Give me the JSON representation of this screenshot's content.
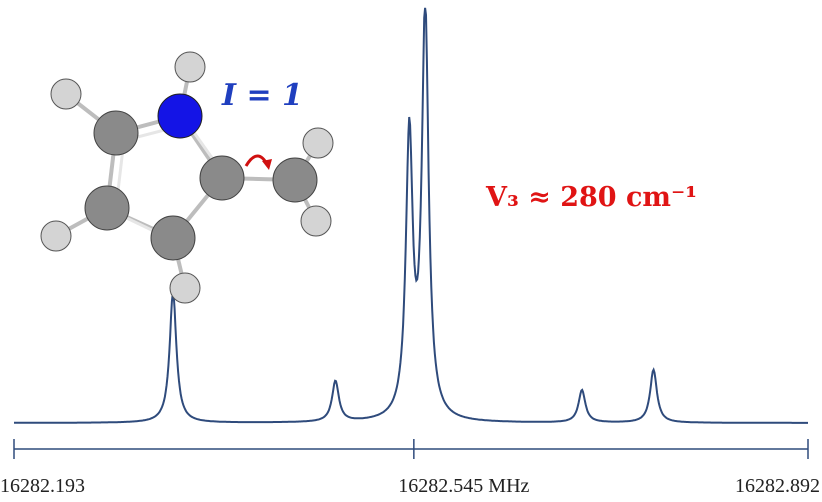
{
  "colors": {
    "spectrum": "#2f4b7c",
    "axis": "#2f4b7c",
    "spin_label": "#1f3fbf",
    "barrier_label": "#e01414",
    "carbon": "#8a8a8a",
    "hydrogen": "#d4d4d4",
    "nitrogen": "#1414e6",
    "rotor_arrow": "#d01010"
  },
  "annotations": {
    "spin_label": "I = 1",
    "barrier_label": "V₃ ≈ 280 cm⁻¹"
  },
  "molecule": {
    "name_icon": "methyl-pyrrole-ball-and-stick-icon",
    "atoms": [
      "C",
      "C",
      "C",
      "C",
      "N",
      "C",
      "H",
      "H",
      "H",
      "H",
      "H",
      "H",
      "H"
    ]
  },
  "chart_data": {
    "type": "line",
    "title": "",
    "xlabel": "",
    "ylabel": "",
    "xlim": [
      16282.193,
      16282.892
    ],
    "ylim": [
      0,
      1
    ],
    "grid": false,
    "tick_labels": [
      "16282.193",
      "16282.545 MHz",
      "16282.892"
    ],
    "tick_values": [
      16282.193,
      16282.545,
      16282.892
    ],
    "peaks": [
      {
        "x": 16282.333,
        "height": 0.32
      },
      {
        "x": 16282.476,
        "height": 0.1
      },
      {
        "x": 16282.541,
        "height": 0.69
      },
      {
        "x": 16282.555,
        "height": 1.0
      },
      {
        "x": 16282.693,
        "height": 0.08
      },
      {
        "x": 16282.756,
        "height": 0.13
      }
    ],
    "baseline": 0
  }
}
